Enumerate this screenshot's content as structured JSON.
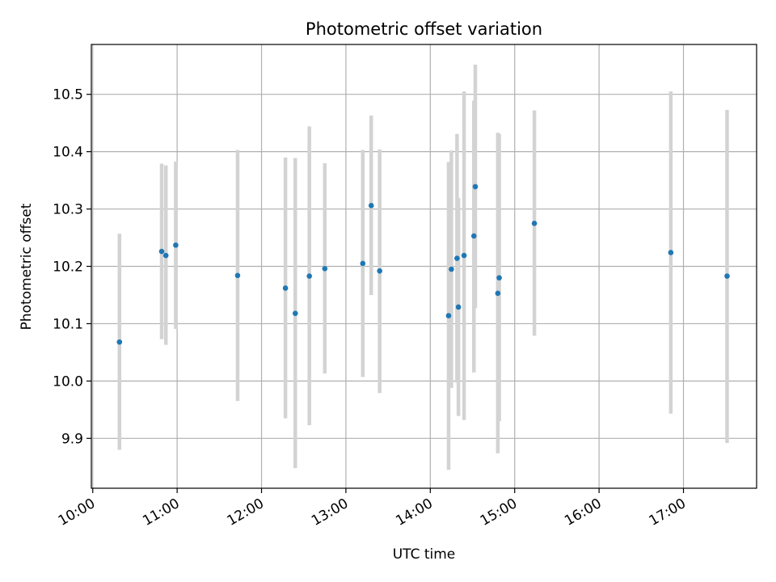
{
  "chart_data": {
    "type": "scatter",
    "title": "Photometric offset variation",
    "xlabel": "UTC time",
    "ylabel": "Photometric offset",
    "xlim": [
      "09:59",
      "17:52"
    ],
    "ylim": [
      9.813,
      10.587
    ],
    "grid": true,
    "x_ticks": [
      "10:00",
      "11:00",
      "12:00",
      "13:00",
      "14:00",
      "15:00",
      "16:00",
      "17:00"
    ],
    "y_ticks": [
      9.9,
      10.0,
      10.1,
      10.2,
      10.3,
      10.4,
      10.5
    ],
    "colors": {
      "marker": "#1f77b4",
      "errorbar": "#d3d3d3",
      "grid": "#b0b0b0"
    },
    "points": [
      {
        "x": "10:19",
        "y": 10.068,
        "ylo": 9.88,
        "yhi": 10.257
      },
      {
        "x": "10:49",
        "y": 10.226,
        "ylo": 10.073,
        "yhi": 10.379
      },
      {
        "x": "10:52",
        "y": 10.219,
        "ylo": 10.063,
        "yhi": 10.376
      },
      {
        "x": "10:59",
        "y": 10.237,
        "ylo": 10.091,
        "yhi": 10.383
      },
      {
        "x": "11:43",
        "y": 10.184,
        "ylo": 9.965,
        "yhi": 10.403
      },
      {
        "x": "12:17",
        "y": 10.162,
        "ylo": 9.935,
        "yhi": 10.39
      },
      {
        "x": "12:24",
        "y": 10.118,
        "ylo": 9.848,
        "yhi": 10.389
      },
      {
        "x": "12:34",
        "y": 10.183,
        "ylo": 9.923,
        "yhi": 10.444
      },
      {
        "x": "12:45",
        "y": 10.196,
        "ylo": 10.013,
        "yhi": 10.38
      },
      {
        "x": "13:12",
        "y": 10.205,
        "ylo": 10.007,
        "yhi": 10.403
      },
      {
        "x": "13:18",
        "y": 10.306,
        "ylo": 10.15,
        "yhi": 10.463
      },
      {
        "x": "13:24",
        "y": 10.192,
        "ylo": 9.979,
        "yhi": 10.404
      },
      {
        "x": "14:13",
        "y": 10.114,
        "ylo": 9.845,
        "yhi": 10.382
      },
      {
        "x": "14:15",
        "y": 10.195,
        "ylo": 9.988,
        "yhi": 10.402
      },
      {
        "x": "14:19",
        "y": 10.214,
        "ylo": 9.997,
        "yhi": 10.431
      },
      {
        "x": "14:20",
        "y": 10.129,
        "ylo": 9.939,
        "yhi": 10.319
      },
      {
        "x": "14:24",
        "y": 10.219,
        "ylo": 9.932,
        "yhi": 10.505
      },
      {
        "x": "14:31",
        "y": 10.253,
        "ylo": 10.015,
        "yhi": 10.489
      },
      {
        "x": "14:32",
        "y": 10.339,
        "ylo": 10.127,
        "yhi": 10.552
      },
      {
        "x": "14:48",
        "y": 10.153,
        "ylo": 9.874,
        "yhi": 10.433
      },
      {
        "x": "14:49",
        "y": 10.18,
        "ylo": 9.93,
        "yhi": 10.431
      },
      {
        "x": "15:14",
        "y": 10.275,
        "ylo": 10.079,
        "yhi": 10.472
      },
      {
        "x": "16:51",
        "y": 10.224,
        "ylo": 9.943,
        "yhi": 10.505
      },
      {
        "x": "17:31",
        "y": 10.183,
        "ylo": 9.892,
        "yhi": 10.473
      }
    ]
  }
}
